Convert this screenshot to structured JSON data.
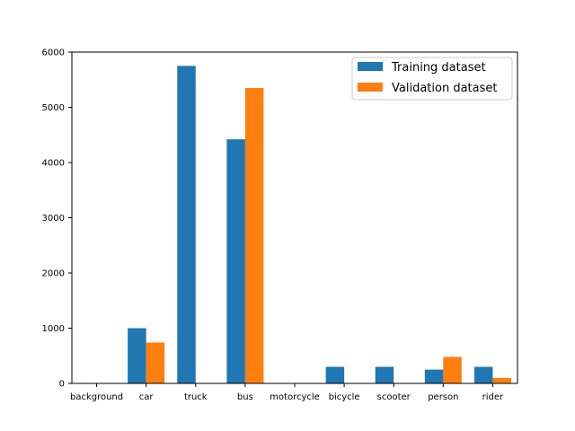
{
  "chart_data": {
    "type": "bar",
    "categories": [
      "background",
      "car",
      "truck",
      "bus",
      "motorcycle",
      "bicycle",
      "scooter",
      "person",
      "rider"
    ],
    "series": [
      {
        "name": "Training dataset",
        "color": "#1f77b4",
        "values": [
          0,
          1000,
          5750,
          4420,
          0,
          300,
          300,
          250,
          300
        ]
      },
      {
        "name": "Validation dataset",
        "color": "#ff7f0e",
        "values": [
          0,
          740,
          0,
          5350,
          0,
          0,
          0,
          480,
          100
        ]
      }
    ],
    "yticks": [
      "0",
      "1000",
      "2000",
      "3000",
      "4000",
      "5000",
      "6000"
    ],
    "ylim": [
      0,
      6000
    ],
    "legend_position": "top-right",
    "grid": false
  }
}
